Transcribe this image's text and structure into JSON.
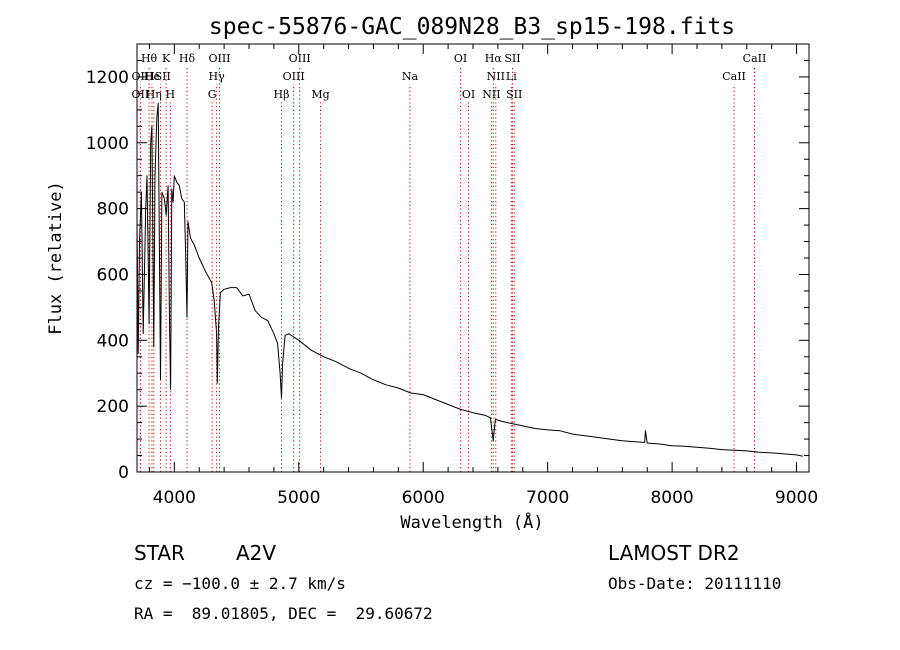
{
  "chart_data": {
    "type": "line",
    "title": "spec-55876-GAC_089N28_B3_sp15-198.fits",
    "xlabel": "Wavelength (Å)",
    "ylabel": "Flux (relative)",
    "xlim": [
      3700,
      9100
    ],
    "ylim": [
      0,
      1300
    ],
    "xticks": [
      4000,
      5000,
      6000,
      7000,
      8000,
      9000
    ],
    "yticks": [
      0,
      200,
      400,
      600,
      800,
      1000,
      1200
    ],
    "grid": false,
    "line_color": "#000000",
    "marker_color": "#cc0000",
    "series": [
      {
        "x": [
          3700,
          3710,
          3720,
          3735,
          3750,
          3770,
          3780,
          3797,
          3810,
          3820,
          3835,
          3845,
          3860,
          3870,
          3889,
          3900,
          3920,
          3935,
          3950,
          3960,
          3970,
          3980,
          3990,
          4000,
          4020,
          4040,
          4060,
          4080,
          4090,
          4102,
          4110,
          4130,
          4160,
          4200,
          4250,
          4300,
          4320,
          4340,
          4345,
          4355,
          4370,
          4400,
          4450,
          4500,
          4550,
          4600,
          4650,
          4700,
          4750,
          4800,
          4830,
          4850,
          4861,
          4870,
          4890,
          4920,
          4960,
          5000,
          5050,
          5100,
          5200,
          5300,
          5400,
          5500,
          5600,
          5700,
          5800,
          5900,
          6000,
          6100,
          6200,
          6300,
          6400,
          6500,
          6540,
          6562,
          6580,
          6620,
          6700,
          6800,
          6900,
          7000,
          7100,
          7200,
          7300,
          7400,
          7500,
          7600,
          7700,
          7780,
          7785,
          7800,
          7900,
          8000,
          8100,
          8200,
          8300,
          8400,
          8500,
          8600,
          8700,
          8800,
          8900,
          9000,
          9050
        ],
        "y": [
          760,
          360,
          700,
          850,
          420,
          800,
          900,
          450,
          1000,
          1050,
          380,
          900,
          1080,
          1120,
          280,
          850,
          830,
          780,
          870,
          480,
          250,
          860,
          820,
          900,
          880,
          870,
          830,
          820,
          680,
          470,
          760,
          710,
          690,
          650,
          610,
          575,
          520,
          420,
          270,
          440,
          545,
          555,
          560,
          560,
          535,
          540,
          490,
          470,
          460,
          420,
          390,
          300,
          225,
          330,
          415,
          420,
          410,
          400,
          385,
          370,
          350,
          335,
          315,
          300,
          280,
          265,
          255,
          240,
          235,
          220,
          205,
          190,
          180,
          172,
          165,
          95,
          160,
          155,
          148,
          140,
          132,
          128,
          125,
          115,
          110,
          105,
          100,
          95,
          92,
          90,
          125,
          88,
          85,
          80,
          78,
          75,
          72,
          68,
          66,
          64,
          60,
          58,
          55,
          52,
          48
        ]
      }
    ],
    "line_markers": [
      {
        "label": "Hθ",
        "x": 3797,
        "row": 0
      },
      {
        "label": "K",
        "x": 3934,
        "row": 0
      },
      {
        "label": "Hδ",
        "x": 4102,
        "row": 0
      },
      {
        "label": "OIII",
        "x": 4363,
        "row": 0
      },
      {
        "label": "OIII",
        "x": 5007,
        "row": 0
      },
      {
        "label": "OI",
        "x": 6300,
        "row": 0
      },
      {
        "label": "Hα",
        "x": 6563,
        "row": 0
      },
      {
        "label": "SII",
        "x": 6717,
        "row": 0
      },
      {
        "label": "CaII",
        "x": 8662,
        "row": 0
      },
      {
        "label": "OII",
        "x": 3727,
        "row": 1
      },
      {
        "label": "He",
        "x": 3820,
        "row": 1
      },
      {
        "label": "ISII",
        "x": 3889,
        "row": 1
      },
      {
        "label": "Hγ",
        "x": 4340,
        "row": 1
      },
      {
        "label": "OIII",
        "x": 4959,
        "row": 1
      },
      {
        "label": "Na",
        "x": 5893,
        "row": 1
      },
      {
        "label": "NII",
        "x": 6583,
        "row": 1
      },
      {
        "label": "Li",
        "x": 6708,
        "row": 1
      },
      {
        "label": "CaII",
        "x": 8498,
        "row": 1
      },
      {
        "label": "OII",
        "x": 3727,
        "row": 2
      },
      {
        "label": "Hη",
        "x": 3835,
        "row": 2
      },
      {
        "label": "H",
        "x": 3968,
        "row": 2
      },
      {
        "label": "G",
        "x": 4304,
        "row": 2
      },
      {
        "label": "Hβ",
        "x": 4861,
        "row": 2
      },
      {
        "label": "Mg",
        "x": 5175,
        "row": 2
      },
      {
        "label": "OI",
        "x": 6364,
        "row": 2
      },
      {
        "label": "NII",
        "x": 6548,
        "row": 2
      },
      {
        "label": "SII",
        "x": 6731,
        "row": 2
      }
    ]
  },
  "info": {
    "object_class": "STAR",
    "subclass": "A2V",
    "survey": "LAMOST DR2",
    "cz": "cz = −100.0 ± 2.7 km/s",
    "obs_date": "Obs-Date: 20111110",
    "coords": "RA =  89.01805, DEC =  29.60672"
  }
}
